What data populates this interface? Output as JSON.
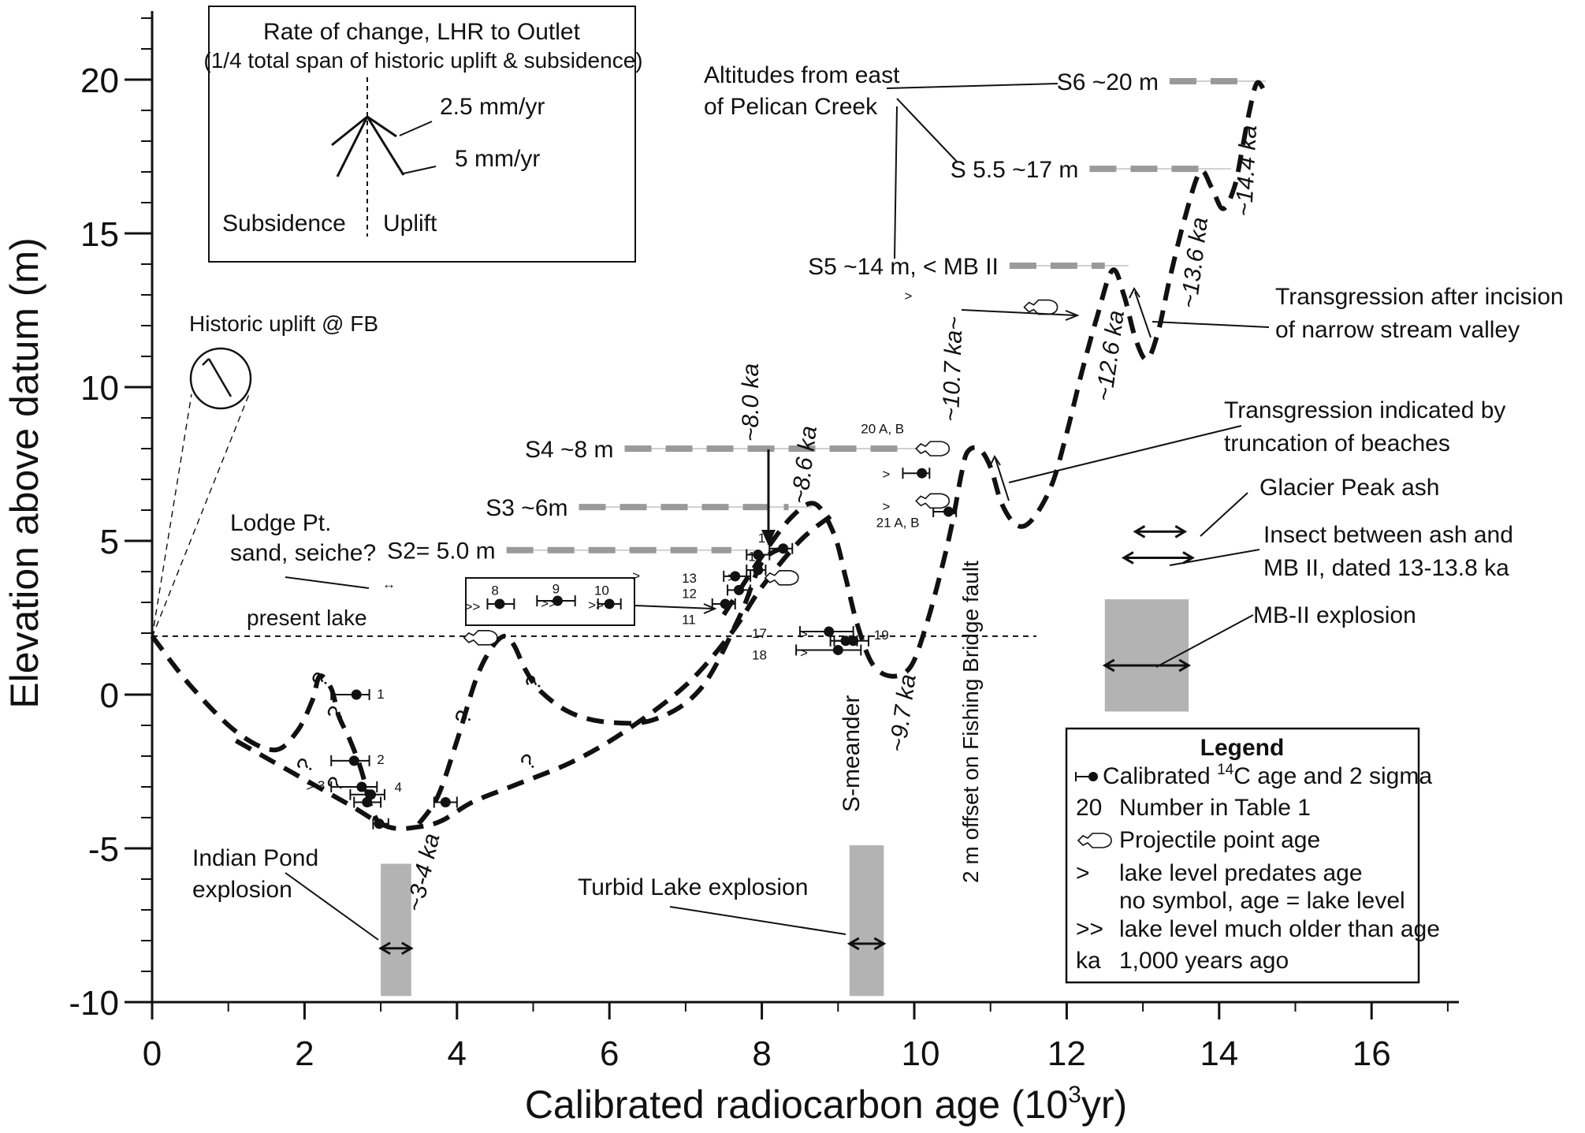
{
  "chart_data": {
    "type": "line",
    "xlabel": "Calibrated radiocarbon age (10",
    "xlabel_sup": "3",
    "xlabel_end": "yr)",
    "ylabel": "Elevation above datum (m)",
    "xlim": [
      0,
      17
    ],
    "ylim": [
      -10,
      22
    ],
    "x_ticks": [
      0,
      2,
      4,
      6,
      8,
      10,
      12,
      14,
      16
    ],
    "x_tick_labels": [
      "0",
      "2",
      "4",
      "6",
      "8",
      "10",
      "12",
      "14",
      "16"
    ],
    "y_ticks": [
      -10,
      -5,
      0,
      5,
      10,
      15,
      20
    ],
    "y_tick_labels": [
      "-10",
      "-5",
      "0",
      "5",
      "10",
      "15",
      "20"
    ],
    "present_lake_level": 1.9,
    "lake_level_curves": [
      {
        "points": [
          [
            0,
            1.9
          ],
          [
            0.5,
            0.3
          ],
          [
            1.1,
            -1.2
          ],
          [
            1.6,
            -1.8
          ],
          [
            1.9,
            -1.2
          ],
          [
            2.1,
            -0.2
          ],
          [
            2.2,
            0.6
          ],
          [
            2.35,
            0.2
          ],
          [
            2.45,
            -0.7
          ],
          [
            2.6,
            -1.5
          ],
          [
            2.75,
            -2.5
          ],
          [
            2.85,
            -3.5
          ],
          [
            2.95,
            -4.1
          ]
        ]
      },
      {
        "points": [
          [
            1.1,
            -1.5
          ],
          [
            1.6,
            -2.2
          ],
          [
            2.1,
            -2.9
          ],
          [
            2.6,
            -3.6
          ],
          [
            3.1,
            -4.3
          ],
          [
            3.5,
            -4.3
          ],
          [
            3.8,
            -4.1
          ],
          [
            4.2,
            -3.5
          ],
          [
            4.7,
            -3.0
          ],
          [
            5.5,
            -2.2
          ],
          [
            6.2,
            -1.2
          ],
          [
            7.0,
            0.3
          ],
          [
            7.6,
            2.0
          ],
          [
            8.0,
            3.5
          ],
          [
            8.5,
            5.0
          ],
          [
            8.9,
            5.8
          ]
        ]
      },
      {
        "points": [
          [
            3.5,
            -4.2
          ],
          [
            3.75,
            -3.3
          ],
          [
            4.0,
            -1.5
          ],
          [
            4.25,
            0.5
          ],
          [
            4.45,
            1.5
          ],
          [
            4.62,
            1.9
          ],
          [
            4.75,
            1.6
          ],
          [
            4.9,
            0.8
          ],
          [
            5.1,
            0.1
          ],
          [
            5.5,
            -0.6
          ],
          [
            6.0,
            -0.9
          ],
          [
            6.6,
            -0.8
          ],
          [
            7.2,
            0.2
          ],
          [
            7.7,
            2.5
          ],
          [
            8.0,
            4.3
          ],
          [
            8.3,
            4.8
          ]
        ]
      },
      {
        "points": [
          [
            7.5,
            2.6
          ],
          [
            8.0,
            4.5
          ],
          [
            8.4,
            5.8
          ],
          [
            8.7,
            6.2
          ],
          [
            8.95,
            5.2
          ],
          [
            9.1,
            3.8
          ],
          [
            9.25,
            2.3
          ],
          [
            9.45,
            1.0
          ],
          [
            9.7,
            0.6
          ],
          [
            9.95,
            0.9
          ],
          [
            10.15,
            2.2
          ],
          [
            10.35,
            4.0
          ],
          [
            10.5,
            5.6
          ],
          [
            10.62,
            7.2
          ],
          [
            10.7,
            7.9
          ],
          [
            10.85,
            8.0
          ],
          [
            11.0,
            7.4
          ],
          [
            11.15,
            6.2
          ],
          [
            11.35,
            5.5
          ],
          [
            11.55,
            5.7
          ],
          [
            11.8,
            6.8
          ],
          [
            12.0,
            8.5
          ],
          [
            12.2,
            10.5
          ],
          [
            12.4,
            12.3
          ],
          [
            12.6,
            13.8
          ],
          [
            12.75,
            13.0
          ],
          [
            12.9,
            11.6
          ],
          [
            13.05,
            10.9
          ],
          [
            13.2,
            11.8
          ],
          [
            13.35,
            13.5
          ],
          [
            13.55,
            15.5
          ],
          [
            13.75,
            17.0
          ],
          [
            13.9,
            16.5
          ],
          [
            14.05,
            15.8
          ],
          [
            14.2,
            16.5
          ],
          [
            14.3,
            17.7
          ],
          [
            14.4,
            19.0
          ],
          [
            14.5,
            19.9
          ],
          [
            14.62,
            19.5
          ]
        ]
      }
    ],
    "benches": [
      {
        "label": "S2= 5.0 m",
        "y": 4.7,
        "x_start": 4.65,
        "x_end": 7.6
      },
      {
        "label": "S3 ~6m",
        "y": 6.1,
        "x_start": 5.6,
        "x_end": 8.35
      },
      {
        "label": "S4 ~8 m",
        "y": 8.0,
        "x_start": 6.2,
        "x_end": 9.95
      },
      {
        "label": "S5 ~14 m,  < MB II",
        "y": 13.95,
        "x_start": 11.25,
        "x_end": 12.5
      },
      {
        "label": "S 5.5 ~17 m",
        "y": 17.1,
        "x_start": 12.3,
        "x_end": 13.85
      },
      {
        "label": "S6 ~20 m",
        "y": 19.95,
        "x_start": 13.35,
        "x_end": 14.3
      }
    ],
    "age_labels": [
      "~3-4 ka",
      "~8.0 ka",
      "~8.6 ka",
      "~9.7 ka",
      "~10.7 ka~",
      "~12.6 ka",
      "~13.6 ka",
      "~14.4 ka"
    ],
    "points": [
      {
        "id": "1",
        "x": 2.68,
        "y": 0.0,
        "xmin": 2.35,
        "xmax": 2.85
      },
      {
        "id": "2",
        "x": 2.65,
        "y": -2.15,
        "xmin": 2.35,
        "xmax": 2.85
      },
      {
        "id": "3",
        "x": 2.75,
        "y": -3.0,
        "xmin": 2.35,
        "xmax": 2.95
      },
      {
        "id": "4",
        "x": 2.87,
        "y": -3.25,
        "xmin": 2.6,
        "xmax": 3.05
      },
      {
        "id": "",
        "x": 2.82,
        "y": -3.5,
        "xmin": 2.65,
        "xmax": 3.0
      },
      {
        "id": "",
        "x": 2.98,
        "y": -4.2,
        "xmin": 2.9,
        "xmax": 3.1
      },
      {
        "id": "",
        "x": 3.85,
        "y": -3.5,
        "xmin": 3.7,
        "xmax": 4.0
      },
      {
        "id": "8",
        "x": 4.56,
        "y": 2.95,
        "xmin": 4.4,
        "xmax": 4.75
      },
      {
        "id": "9",
        "x": 5.32,
        "y": 3.05,
        "xmin": 5.05,
        "xmax": 5.55
      },
      {
        "id": "10",
        "x": 6.0,
        "y": 2.95,
        "xmin": 5.85,
        "xmax": 6.15
      },
      {
        "id": "11",
        "x": 7.52,
        "y": 2.95,
        "xmin": 7.35,
        "xmax": 7.65
      },
      {
        "id": "12",
        "x": 7.7,
        "y": 3.4,
        "xmin": 7.55,
        "xmax": 7.85
      },
      {
        "id": "13",
        "x": 7.65,
        "y": 3.85,
        "xmin": 7.5,
        "xmax": 7.85
      },
      {
        "id": "14",
        "x": 7.95,
        "y": 4.05,
        "xmin": 7.8,
        "xmax": 8.05
      },
      {
        "id": "15",
        "x": 7.95,
        "y": 4.55,
        "xmin": 7.8,
        "xmax": 8.1
      },
      {
        "id": "16",
        "x": 8.28,
        "y": 4.75,
        "xmin": 8.1,
        "xmax": 8.4
      },
      {
        "id": "17",
        "x": 8.88,
        "y": 2.05,
        "xmin": 8.5,
        "xmax": 9.2
      },
      {
        "id": "18",
        "x": 9.0,
        "y": 1.45,
        "xmin": 8.45,
        "xmax": 9.3
      },
      {
        "id": "19",
        "x": 9.2,
        "y": 1.75,
        "xmin": 8.9,
        "xmax": 9.4
      },
      {
        "id": "",
        "x": 9.1,
        "y": 1.75,
        "xmin": 8.95,
        "xmax": 9.25
      },
      {
        "id": "",
        "x": 10.1,
        "y": 7.2,
        "xmin": 9.85,
        "xmax": 10.2
      },
      {
        "id": "",
        "x": 10.45,
        "y": 5.95,
        "xmin": 10.25,
        "xmax": 10.55
      }
    ],
    "point_annotations": {
      "p20": "20 A, B",
      "p21": "21 A, B"
    },
    "explosions": [
      {
        "label": "Indian Pond\nexplosion",
        "x_start": 3.0,
        "x_end": 3.4,
        "y_bottom": -9.8,
        "y_top": -5.5
      },
      {
        "label": "Turbid Lake explosion",
        "x_start": 9.15,
        "x_end": 9.6,
        "y_bottom": -9.8,
        "y_top": -4.9
      },
      {
        "label": "MB-II explosion",
        "x_start": 12.5,
        "x_end": 13.6,
        "y_bottom": -0.55,
        "y_top": 3.1
      }
    ],
    "arrows_markers": {
      "glacier_peak": [
        12.9,
        13.55,
        5.3
      ],
      "insect": [
        12.75,
        13.65,
        4.45
      ]
    },
    "annotations": {
      "lodge": "Lodge Pt.\nsand, seiche?",
      "present_lake": "present lake",
      "historic": "Historic uplift @ FB",
      "altitudes": "Altitudes from east\nof Pelican Creek",
      "transgression1": "Transgression after incision\nof narrow stream valley",
      "transgression2": "Transgression indicated by\ntruncation of beaches",
      "glacier": "Glacier Peak ash",
      "insect": "Insect between ash and\nMB II, dated 13-13.8 ka",
      "mbii": "MB-II explosion",
      "smeander": "S-meander",
      "offset": "2 m offset on Fishing Bridge fault"
    },
    "inset": {
      "title": "Rate  of change, LHR to Outlet",
      "subtitle": "(1/4 total span of historic uplift & subsidence)",
      "rate1": "2.5 mm/yr",
      "rate2": "5 mm/yr",
      "left": "Subsidence",
      "right": "Uplift"
    },
    "legend": {
      "title": "Legend",
      "entries": [
        {
          "symbol": "errorbar",
          "text": "Calibrated",
          "sup": "14",
          "text2": "C age and 2 sigma"
        },
        {
          "symbol": "20",
          "text": "Number in Table 1"
        },
        {
          "symbol": "projectile",
          "text": "Projectile point age"
        },
        {
          "symbol": ">",
          "text": "lake level predates  age"
        },
        {
          "symbol": "",
          "text": "no symbol, age = lake level"
        },
        {
          "symbol": ">>",
          "text": "lake level much  older than age"
        },
        {
          "symbol": "ka",
          "text": "1,000 years ago"
        }
      ]
    }
  }
}
